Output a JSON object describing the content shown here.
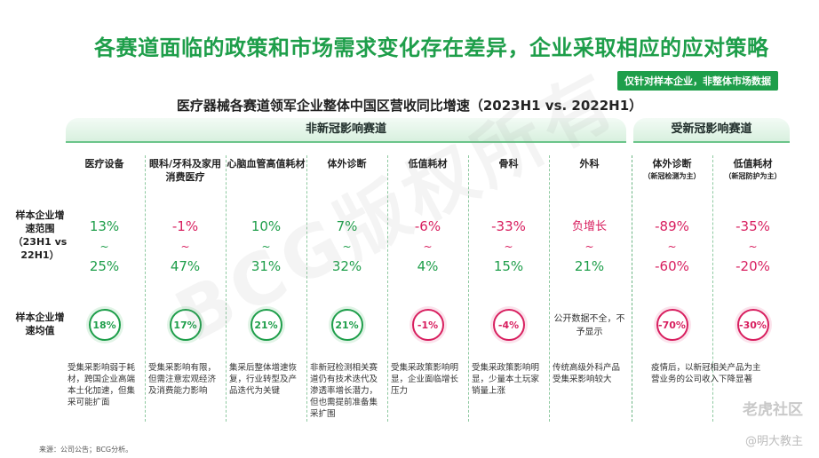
{
  "title": "各赛道面临的政策和市场需求变化存在差异，企业采取相应的应对策略",
  "scope_badge": "仅针对样本企业，非整体市场数据",
  "chart_data": {
    "type": "table",
    "title": "医疗器械各赛道领军企业整体中国区营收同比增速（2023H1 vs. 2022H1）",
    "groups": [
      {
        "label": "非新冠影响赛道",
        "segment_count": 7
      },
      {
        "label": "受新冠影响赛道",
        "segment_count": 2
      }
    ],
    "row_labels": {
      "range": "样本企业增速范围（23H1 vs 22H1）",
      "average": "样本企业增速均值"
    },
    "segments": [
      {
        "name": "医疗设备",
        "range_low": "13%",
        "range_high": "25%",
        "low": 13,
        "high": 25,
        "average": "18%",
        "avg_value": 18,
        "note": "受集采影响弱于耗材，跨国企业高端本土化加速，但集采可能扩面"
      },
      {
        "name": "眼科/牙科及家用消费医疗",
        "range_low": "-1%",
        "range_high": "47%",
        "low": -1,
        "high": 47,
        "average": "17%",
        "avg_value": 17,
        "note": "受集采影响有限，但需注意宏观经济及消费能力影响"
      },
      {
        "name": "心脑血管高值耗材",
        "range_low": "10%",
        "range_high": "31%",
        "low": 10,
        "high": 31,
        "average": "21%",
        "avg_value": 21,
        "note": "集采后整体增速恢复，行业转型及产品迭代为关键"
      },
      {
        "name": "体外诊断",
        "range_low": "7%",
        "range_high": "32%",
        "low": 7,
        "high": 32,
        "average": "21%",
        "avg_value": 21,
        "note": "非新冠检测相关赛道仍有技术迭代及渗透率增长潜力，但也需提前准备集采扩围"
      },
      {
        "name": "低值耗材",
        "range_low": "-6%",
        "range_high": "4%",
        "low": -6,
        "high": 4,
        "average": "-1%",
        "avg_value": -1,
        "note": "受集采政策影响明显，企业面临增长压力"
      },
      {
        "name": "骨科",
        "range_low": "-33%",
        "range_high": "15%",
        "low": -33,
        "high": 15,
        "average": "-4%",
        "avg_value": -4,
        "note": "受集采政策影响明显，少量本土玩家销量上涨"
      },
      {
        "name": "外科",
        "range_text": "负增长",
        "range_high": "21%",
        "high": 21,
        "average": "公开数据不全，不予显示",
        "note": "传统高级外科产品受集采影响较大"
      },
      {
        "name": "体外诊断",
        "sub_note": "（新冠检测为主）",
        "range_low": "-89%",
        "range_high": "-60%",
        "low": -89,
        "high": -60,
        "average": "-70%",
        "avg_value": -70,
        "note": "疫情后，以新冠相关产品为主营业务的公司收入下降显著"
      },
      {
        "name": "低值耗材",
        "sub_note": "（新冠防护为主）",
        "range_low": "-35%",
        "range_high": "-20%",
        "low": -35,
        "high": -20,
        "average": "-30%",
        "avg_value": -30,
        "note": ""
      }
    ]
  },
  "source": "来源：公司公告；BCG分析。",
  "watermarks": {
    "main": "BCG版权所有",
    "logo": "老虎社区",
    "author": "@明大教主"
  }
}
